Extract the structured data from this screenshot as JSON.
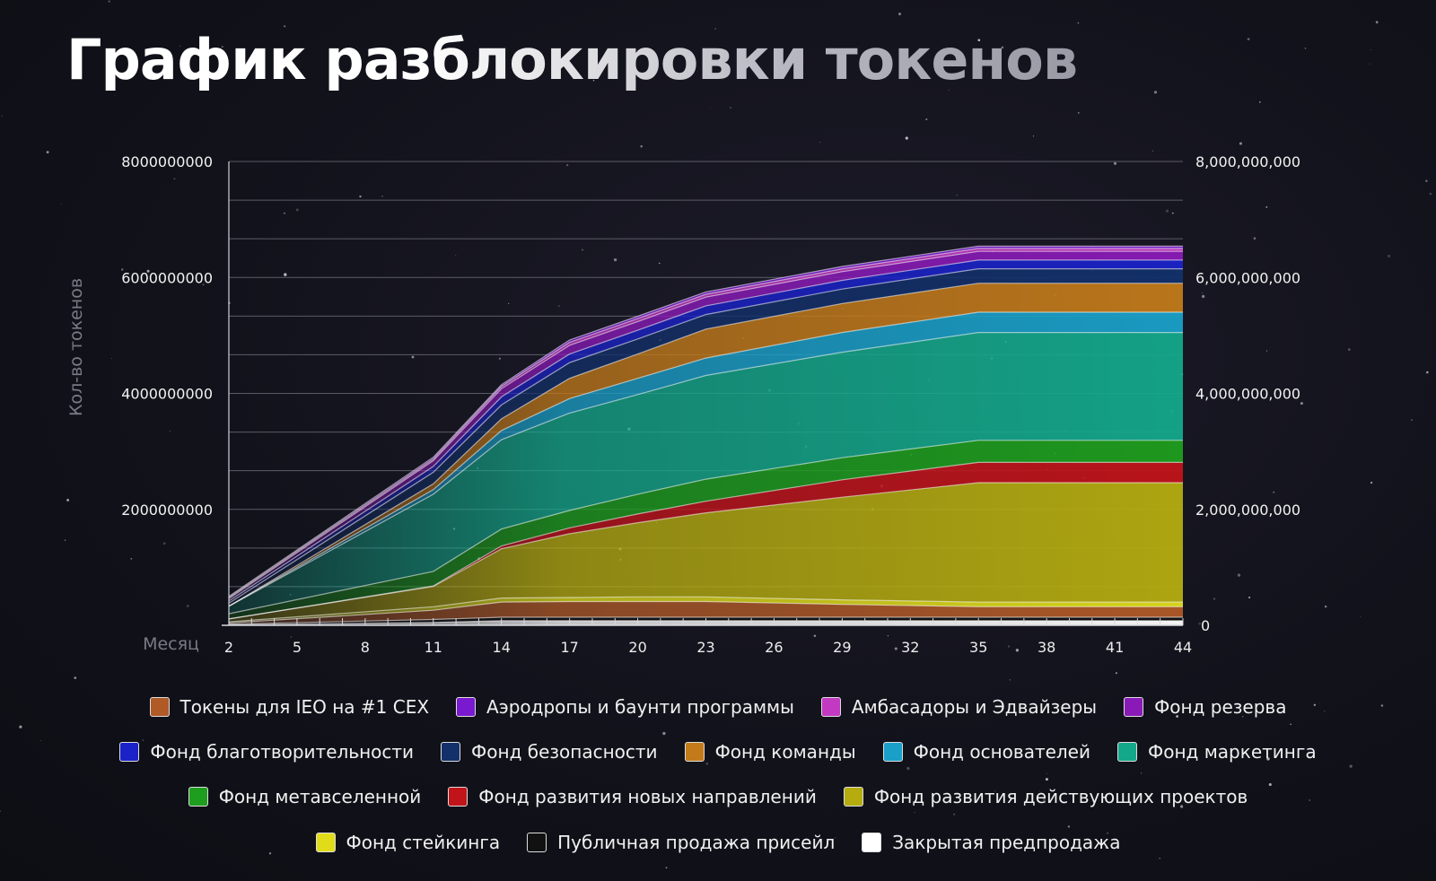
{
  "title": "График разблокировки токенов",
  "chart_data": {
    "type": "area",
    "stacked": true,
    "ylabel": "Кол-во токенов",
    "xlabel": "Месяц",
    "ylim": [
      0,
      8000000000
    ],
    "left_ticks": [
      "8000000000",
      "6000000000",
      "4000000000",
      "2000000000"
    ],
    "left_tick_values": [
      8000000000,
      6000000000,
      4000000000,
      2000000000
    ],
    "right_ticks": [
      "8,000,000,000",
      "6,000,000,000",
      "4,000,000,000",
      "2,000,000,000",
      "0"
    ],
    "right_tick_values": [
      8000000000,
      6000000000,
      4000000000,
      2000000000,
      0
    ],
    "x_tick_labels": [
      "2",
      "5",
      "8",
      "11",
      "14",
      "17",
      "20",
      "23",
      "26",
      "29",
      "32",
      "35",
      "38",
      "41",
      "44"
    ],
    "x": [
      2,
      11,
      14,
      17,
      20,
      23,
      29,
      35,
      38,
      44
    ],
    "series": [
      {
        "name": "Закрытая предпродажа",
        "color": "#ffffff",
        "values": [
          10000000,
          50000000,
          80000000,
          80000000,
          80000000,
          80000000,
          80000000,
          80000000,
          80000000,
          80000000
        ]
      },
      {
        "name": "Публичная продажа присейл",
        "color": "#111111",
        "values": [
          10000000,
          50000000,
          60000000,
          60000000,
          60000000,
          60000000,
          60000000,
          60000000,
          60000000,
          60000000
        ]
      },
      {
        "name": "Токены для IEO на #1 CEX",
        "color": "#b05a28",
        "values": [
          20000000,
          160000000,
          260000000,
          270000000,
          270000000,
          270000000,
          220000000,
          180000000,
          180000000,
          180000000
        ]
      },
      {
        "name": "Фонд стейкинга",
        "color": "#e0dc1a",
        "values": [
          20000000,
          60000000,
          70000000,
          70000000,
          80000000,
          80000000,
          80000000,
          80000000,
          80000000,
          80000000
        ]
      },
      {
        "name": "Фонд развития действующих проектов",
        "color": "#b5ac10",
        "values": [
          50000000,
          350000000,
          850000000,
          1100000000,
          1280000000,
          1450000000,
          1770000000,
          2060000000,
          2060000000,
          2060000000
        ]
      },
      {
        "name": "Фонд развития новых направлений",
        "color": "#c0141a",
        "values": [
          0,
          10000000,
          50000000,
          100000000,
          150000000,
          200000000,
          300000000,
          350000000,
          350000000,
          350000000
        ]
      },
      {
        "name": "Фонд метавселенной",
        "color": "#1e9e1e",
        "values": [
          90000000,
          250000000,
          290000000,
          300000000,
          340000000,
          380000000,
          380000000,
          380000000,
          380000000,
          380000000
        ]
      },
      {
        "name": "Фонд маркетинга",
        "color": "#14a88a",
        "values": [
          130000000,
          1330000000,
          1540000000,
          1680000000,
          1720000000,
          1790000000,
          1820000000,
          1860000000,
          1860000000,
          1860000000
        ]
      },
      {
        "name": "Фонд основателей",
        "color": "#1aa0c8",
        "values": [
          0,
          80000000,
          160000000,
          250000000,
          280000000,
          300000000,
          340000000,
          350000000,
          350000000,
          350000000
        ]
      },
      {
        "name": "Фонд команды",
        "color": "#c27a1a",
        "values": [
          0,
          100000000,
          200000000,
          350000000,
          420000000,
          500000000,
          500000000,
          500000000,
          500000000,
          500000000
        ]
      },
      {
        "name": "Фонд безопасности",
        "color": "#12306a",
        "values": [
          50000000,
          200000000,
          240000000,
          270000000,
          260000000,
          250000000,
          250000000,
          250000000,
          250000000,
          250000000
        ]
      },
      {
        "name": "Фонд благотворительности",
        "color": "#1a22c8",
        "values": [
          40000000,
          100000000,
          140000000,
          150000000,
          150000000,
          150000000,
          150000000,
          150000000,
          150000000,
          150000000
        ]
      },
      {
        "name": "Фонд резерва",
        "color": "#8a1ab8",
        "values": [
          40000000,
          100000000,
          140000000,
          150000000,
          150000000,
          150000000,
          150000000,
          150000000,
          150000000,
          150000000
        ]
      },
      {
        "name": "Амбасадоры и Эдвайзеры",
        "color": "#c23ac2",
        "values": [
          20000000,
          30000000,
          40000000,
          50000000,
          50000000,
          50000000,
          50000000,
          50000000,
          50000000,
          50000000
        ]
      },
      {
        "name": "Аэродропы и баунти программы",
        "color": "#7a1ad0",
        "values": [
          20000000,
          30000000,
          30000000,
          40000000,
          40000000,
          40000000,
          40000000,
          40000000,
          40000000,
          40000000
        ]
      }
    ],
    "legend": [
      [
        {
          "label": "Токены для IEO на #1 CEX",
          "color": "#b05a28"
        },
        {
          "label": "Аэродропы и баунти программы",
          "color": "#7a1ad0"
        },
        {
          "label": "Амбасадоры и Эдвайзеры",
          "color": "#c23ac2"
        },
        {
          "label": "Фонд резерва",
          "color": "#8a1ab8"
        }
      ],
      [
        {
          "label": "Фонд благотворительности",
          "color": "#1a22c8"
        },
        {
          "label": "Фонд безопасности",
          "color": "#12306a"
        },
        {
          "label": "Фонд команды",
          "color": "#c27a1a"
        },
        {
          "label": "Фонд основателей",
          "color": "#1aa0c8"
        },
        {
          "label": "Фонд маркетинга",
          "color": "#14a88a"
        }
      ],
      [
        {
          "label": "Фонд метавселенной",
          "color": "#1e9e1e"
        },
        {
          "label": "Фонд развития новых направлений",
          "color": "#c0141a"
        },
        {
          "label": "Фонд развития действующих проектов",
          "color": "#b5ac10"
        }
      ],
      [
        {
          "label": "Фонд стейкинга",
          "color": "#e0dc1a"
        },
        {
          "label": "Публичная продажа присейл",
          "color": "#111111"
        },
        {
          "label": "Закрытая предпродажа",
          "color": "#ffffff"
        }
      ]
    ]
  }
}
